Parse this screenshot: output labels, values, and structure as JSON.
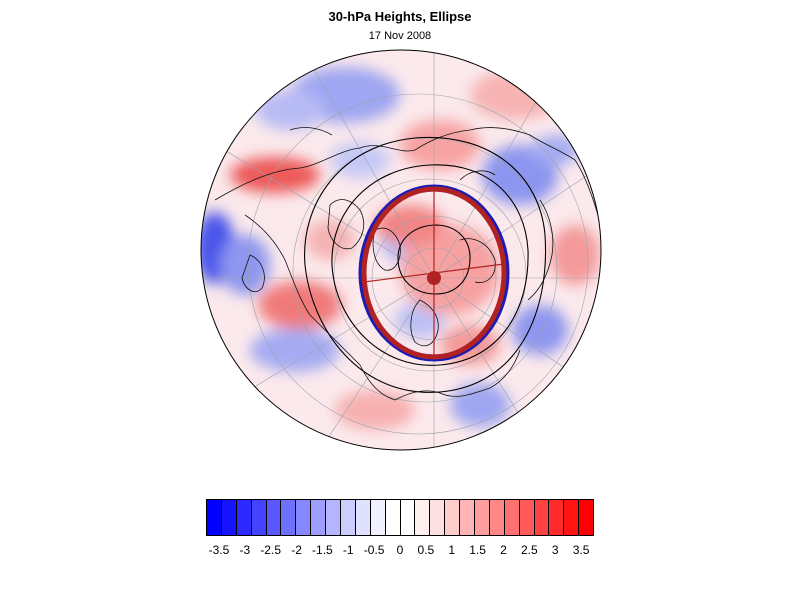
{
  "title": "30-hPa Heights, Ellipse",
  "subtitle": "17 Nov 2008",
  "colorbar": {
    "min": -3.75,
    "max": 3.75,
    "step": 0.25,
    "colors": [
      "#0000ff",
      "#1414ff",
      "#2b2bff",
      "#4242ff",
      "#5959ff",
      "#7070ff",
      "#8787ff",
      "#9e9eff",
      "#b5b5ff",
      "#ccccff",
      "#e0e0ff",
      "#f0f0ff",
      "#ffffff",
      "#ffffff",
      "#fff0f0",
      "#ffe0e0",
      "#ffcccc",
      "#ffb5b5",
      "#ff9e9e",
      "#ff8787",
      "#ff7070",
      "#ff5959",
      "#ff4242",
      "#ff2b2b",
      "#ff1414",
      "#ff0000"
    ],
    "tick_labels": [
      "-3.5",
      "-3",
      "-2.5",
      "-2",
      "-1.5",
      "-1",
      "-0.5",
      "0",
      "0.5",
      "1",
      "1.5",
      "2",
      "2.5",
      "3",
      "3.5"
    ],
    "tick_values": [
      -3.5,
      -3,
      -2.5,
      -2,
      -1.5,
      -1,
      -0.5,
      0,
      0.5,
      1,
      1.5,
      2,
      2.5,
      3,
      3.5
    ]
  },
  "map": {
    "projection": "polar stereographic (northern hemisphere)",
    "field": "standardized 30-hPa height anomaly",
    "ellipse_edge_color": "#b22222",
    "ellipse_inner_color": "#1c1cb4",
    "centroid_color": "#b22222",
    "contour_color": "#000000"
  }
}
